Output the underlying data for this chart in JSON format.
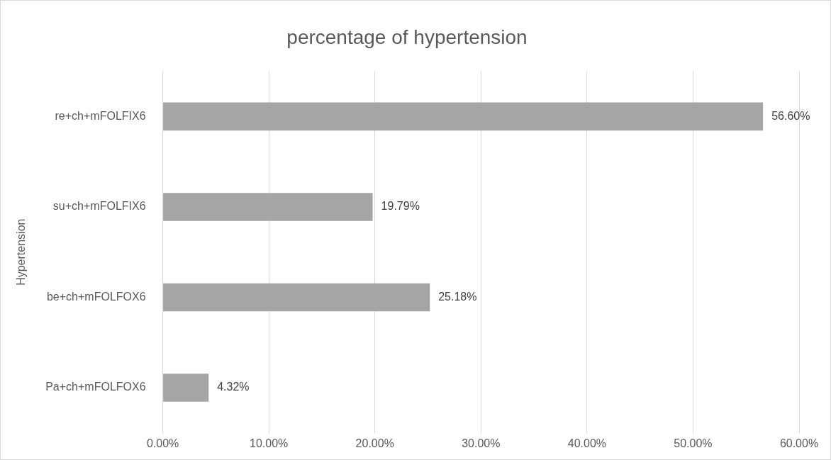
{
  "chart_data": {
    "type": "bar",
    "orientation": "horizontal",
    "title": "percentage of hypertension",
    "ylabel": "Hypertension",
    "categories": [
      "re+ch+mFOLFIX6",
      "su+ch+mFOLFIX6",
      "be+ch+mFOLFOX6",
      "Pa+ch+mFOLFOX6"
    ],
    "values": [
      56.6,
      19.79,
      25.18,
      4.32
    ],
    "value_labels": [
      "56.60%",
      "19.79%",
      "25.18%",
      "4.32%"
    ],
    "color": "#a5a5a5",
    "xlim": [
      0,
      60
    ],
    "xticks": [
      {
        "value": 0,
        "label": "0.00%"
      },
      {
        "value": 10,
        "label": "10.00%"
      },
      {
        "value": 20,
        "label": "20.00%"
      },
      {
        "value": 30,
        "label": "30.00%"
      },
      {
        "value": 40,
        "label": "40.00%"
      },
      {
        "value": 50,
        "label": "50.00%"
      },
      {
        "value": 60,
        "label": "60.00%"
      }
    ],
    "grid": "x",
    "legend": false
  }
}
